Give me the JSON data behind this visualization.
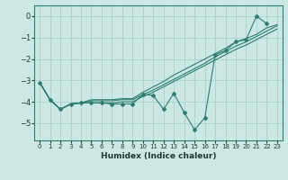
{
  "xlabel": "Humidex (Indice chaleur)",
  "x": [
    0,
    1,
    2,
    3,
    4,
    5,
    6,
    7,
    8,
    9,
    10,
    11,
    12,
    13,
    14,
    15,
    16,
    17,
    18,
    19,
    20,
    21,
    22,
    23
  ],
  "line1": [
    -3.1,
    -3.9,
    -4.35,
    -4.1,
    -4.05,
    -3.9,
    -3.9,
    -3.9,
    -3.85,
    -3.85,
    -3.55,
    -3.3,
    -3.05,
    -2.75,
    -2.5,
    -2.25,
    -2.0,
    -1.75,
    -1.5,
    -1.2,
    -1.05,
    -0.85,
    -0.55,
    -0.4
  ],
  "line2": [
    -3.1,
    -3.9,
    -4.35,
    -4.1,
    -4.05,
    -3.95,
    -3.95,
    -3.95,
    -3.9,
    -3.9,
    -3.65,
    -3.45,
    -3.2,
    -2.95,
    -2.7,
    -2.45,
    -2.2,
    -1.9,
    -1.65,
    -1.4,
    -1.2,
    -0.95,
    -0.7,
    -0.45
  ],
  "line3": [
    -3.1,
    -3.9,
    -4.35,
    -4.1,
    -4.05,
    -4.05,
    -4.05,
    -4.05,
    -4.0,
    -4.0,
    -3.75,
    -3.55,
    -3.3,
    -3.05,
    -2.8,
    -2.55,
    -2.3,
    -2.05,
    -1.8,
    -1.55,
    -1.35,
    -1.1,
    -0.85,
    -0.6
  ],
  "line_jagged": [
    -3.1,
    -3.9,
    -4.35,
    -4.1,
    -4.05,
    -4.05,
    -4.05,
    -4.1,
    -4.1,
    -4.1,
    -3.65,
    -3.7,
    -4.35,
    -3.6,
    -4.5,
    -5.3,
    -4.75,
    -1.8,
    -1.6,
    -1.2,
    -1.1,
    0.0,
    -0.35,
    null
  ],
  "line_color": "#2e7d6e",
  "bg_color": "#cce8e4",
  "grid_color": "#aacfcc",
  "ylim": [
    -5.8,
    0.5
  ],
  "xlim": [
    -0.5,
    23.5
  ],
  "yticks": [
    0,
    -1,
    -2,
    -3,
    -4,
    -5
  ],
  "xticks": [
    0,
    1,
    2,
    3,
    4,
    5,
    6,
    7,
    8,
    9,
    10,
    11,
    12,
    13,
    14,
    15,
    16,
    17,
    18,
    19,
    20,
    21,
    22,
    23
  ]
}
